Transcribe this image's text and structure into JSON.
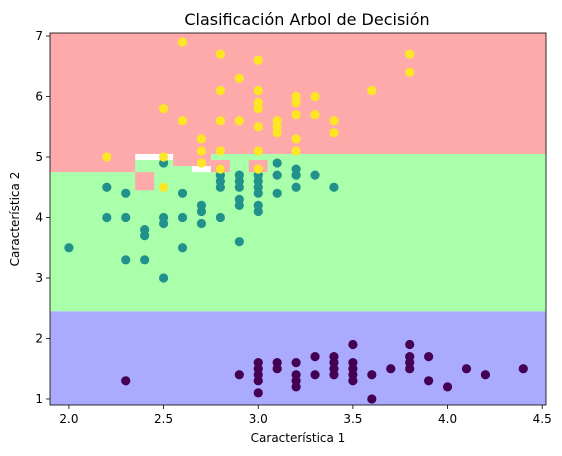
{
  "chart_data": {
    "type": "scatter",
    "title": "Clasificación Arbol de Decisión",
    "xlabel": "Característica 1",
    "ylabel": "Característica 2",
    "xlim": [
      1.9,
      4.52
    ],
    "ylim": [
      0.9,
      7.05
    ],
    "xticks": [
      2.0,
      2.5,
      3.0,
      3.5,
      4.0,
      4.5
    ],
    "xtick_labels": [
      "2.0",
      "2.5",
      "3.0",
      "3.5",
      "4.0",
      "4.5"
    ],
    "yticks": [
      1,
      2,
      3,
      4,
      5,
      6,
      7
    ],
    "ytick_labels": [
      "1",
      "2",
      "3",
      "4",
      "5",
      "6",
      "7"
    ],
    "grid": false,
    "regions": [
      {
        "x": [
          1.9,
          4.52
        ],
        "y": [
          0.9,
          2.45
        ],
        "color": "#aaaaff"
      },
      {
        "x": [
          1.9,
          4.52
        ],
        "y": [
          2.45,
          4.75
        ],
        "color": "#aaffaa"
      },
      {
        "x": [
          1.9,
          2.35
        ],
        "y": [
          4.75,
          5.05
        ],
        "color": "#aaffaa"
      },
      {
        "x": [
          2.35,
          2.55
        ],
        "y": [
          4.75,
          4.95
        ],
        "color": "#aaffaa"
      },
      {
        "x": [
          2.55,
          2.65
        ],
        "y": [
          4.75,
          4.85
        ],
        "color": "#aaffaa"
      },
      {
        "x": [
          2.75,
          3.05
        ],
        "y": [
          4.75,
          5.05
        ],
        "color": "#aaffaa"
      },
      {
        "x": [
          1.9,
          4.52
        ],
        "y": [
          5.05,
          7.05
        ],
        "color": "#ffaaaa"
      },
      {
        "x": [
          1.9,
          2.35
        ],
        "y": [
          4.75,
          5.05
        ],
        "color": "#ffaaaa"
      },
      {
        "x": [
          2.35,
          2.45
        ],
        "y": [
          4.45,
          4.75
        ],
        "color": "#ffaaaa"
      },
      {
        "x": [
          2.55,
          2.75
        ],
        "y": [
          4.85,
          5.05
        ],
        "color": "#ffaaaa"
      },
      {
        "x": [
          2.75,
          2.85
        ],
        "y": [
          4.75,
          4.95
        ],
        "color": "#ffaaaa"
      },
      {
        "x": [
          2.95,
          3.05
        ],
        "y": [
          4.75,
          4.95
        ],
        "color": "#ffaaaa"
      },
      {
        "x": [
          3.05,
          4.52
        ],
        "y": [
          4.75,
          5.05
        ],
        "color": "#aaffaa"
      }
    ],
    "series": [
      {
        "color": "#440154",
        "points": [
          [
            2.3,
            1.3
          ],
          [
            2.9,
            1.4
          ],
          [
            3.0,
            1.1
          ],
          [
            3.0,
            1.3
          ],
          [
            3.0,
            1.4
          ],
          [
            3.0,
            1.5
          ],
          [
            3.0,
            1.6
          ],
          [
            3.1,
            1.5
          ],
          [
            3.1,
            1.6
          ],
          [
            3.2,
            1.2
          ],
          [
            3.2,
            1.3
          ],
          [
            3.2,
            1.4
          ],
          [
            3.2,
            1.6
          ],
          [
            3.3,
            1.4
          ],
          [
            3.3,
            1.7
          ],
          [
            3.4,
            1.4
          ],
          [
            3.4,
            1.5
          ],
          [
            3.4,
            1.6
          ],
          [
            3.4,
            1.7
          ],
          [
            3.5,
            1.3
          ],
          [
            3.5,
            1.4
          ],
          [
            3.5,
            1.5
          ],
          [
            3.5,
            1.6
          ],
          [
            3.5,
            1.9
          ],
          [
            3.6,
            1.0
          ],
          [
            3.6,
            1.4
          ],
          [
            3.7,
            1.5
          ],
          [
            3.8,
            1.5
          ],
          [
            3.8,
            1.6
          ],
          [
            3.8,
            1.7
          ],
          [
            3.8,
            1.9
          ],
          [
            3.9,
            1.3
          ],
          [
            3.9,
            1.7
          ],
          [
            4.0,
            1.2
          ],
          [
            4.1,
            1.5
          ],
          [
            4.2,
            1.4
          ],
          [
            4.4,
            1.5
          ]
        ]
      },
      {
        "color": "#21918c",
        "points": [
          [
            2.0,
            3.5
          ],
          [
            2.2,
            4.0
          ],
          [
            2.2,
            4.5
          ],
          [
            2.3,
            3.3
          ],
          [
            2.3,
            4.0
          ],
          [
            2.3,
            4.4
          ],
          [
            2.4,
            3.3
          ],
          [
            2.4,
            3.7
          ],
          [
            2.4,
            3.8
          ],
          [
            2.5,
            3.0
          ],
          [
            2.5,
            3.9
          ],
          [
            2.5,
            4.0
          ],
          [
            2.5,
            4.9
          ],
          [
            2.6,
            3.5
          ],
          [
            2.6,
            4.0
          ],
          [
            2.6,
            4.4
          ],
          [
            2.7,
            3.9
          ],
          [
            2.7,
            4.1
          ],
          [
            2.7,
            4.2
          ],
          [
            2.8,
            4.0
          ],
          [
            2.8,
            4.5
          ],
          [
            2.8,
            4.6
          ],
          [
            2.8,
            4.7
          ],
          [
            2.8,
            4.8
          ],
          [
            2.9,
            3.6
          ],
          [
            2.9,
            4.2
          ],
          [
            2.9,
            4.3
          ],
          [
            2.9,
            4.5
          ],
          [
            2.9,
            4.6
          ],
          [
            2.9,
            4.7
          ],
          [
            3.0,
            4.1
          ],
          [
            3.0,
            4.2
          ],
          [
            3.0,
            4.4
          ],
          [
            3.0,
            4.5
          ],
          [
            3.0,
            4.6
          ],
          [
            3.0,
            4.7
          ],
          [
            3.1,
            4.4
          ],
          [
            3.1,
            4.7
          ],
          [
            3.1,
            4.9
          ],
          [
            3.2,
            4.5
          ],
          [
            3.2,
            4.7
          ],
          [
            3.2,
            4.8
          ],
          [
            3.3,
            4.7
          ],
          [
            3.4,
            4.5
          ]
        ]
      },
      {
        "color": "#fde725",
        "points": [
          [
            2.2,
            5.0
          ],
          [
            2.5,
            4.5
          ],
          [
            2.5,
            5.0
          ],
          [
            2.5,
            5.8
          ],
          [
            2.6,
            5.6
          ],
          [
            2.6,
            6.9
          ],
          [
            2.7,
            4.9
          ],
          [
            2.7,
            5.1
          ],
          [
            2.7,
            5.3
          ],
          [
            2.8,
            4.8
          ],
          [
            2.8,
            5.1
          ],
          [
            2.8,
            5.6
          ],
          [
            2.8,
            6.1
          ],
          [
            2.8,
            6.7
          ],
          [
            2.9,
            5.6
          ],
          [
            2.9,
            6.3
          ],
          [
            3.0,
            4.8
          ],
          [
            3.0,
            5.1
          ],
          [
            3.0,
            5.5
          ],
          [
            3.0,
            5.8
          ],
          [
            3.0,
            5.9
          ],
          [
            3.0,
            6.1
          ],
          [
            3.0,
            6.6
          ],
          [
            3.1,
            5.4
          ],
          [
            3.1,
            5.5
          ],
          [
            3.1,
            5.6
          ],
          [
            3.2,
            5.1
          ],
          [
            3.2,
            5.3
          ],
          [
            3.2,
            5.7
          ],
          [
            3.2,
            5.9
          ],
          [
            3.2,
            6.0
          ],
          [
            3.3,
            5.7
          ],
          [
            3.3,
            6.0
          ],
          [
            3.4,
            5.4
          ],
          [
            3.4,
            5.6
          ],
          [
            3.6,
            6.1
          ],
          [
            3.8,
            6.4
          ],
          [
            3.8,
            6.7
          ]
        ]
      }
    ]
  }
}
